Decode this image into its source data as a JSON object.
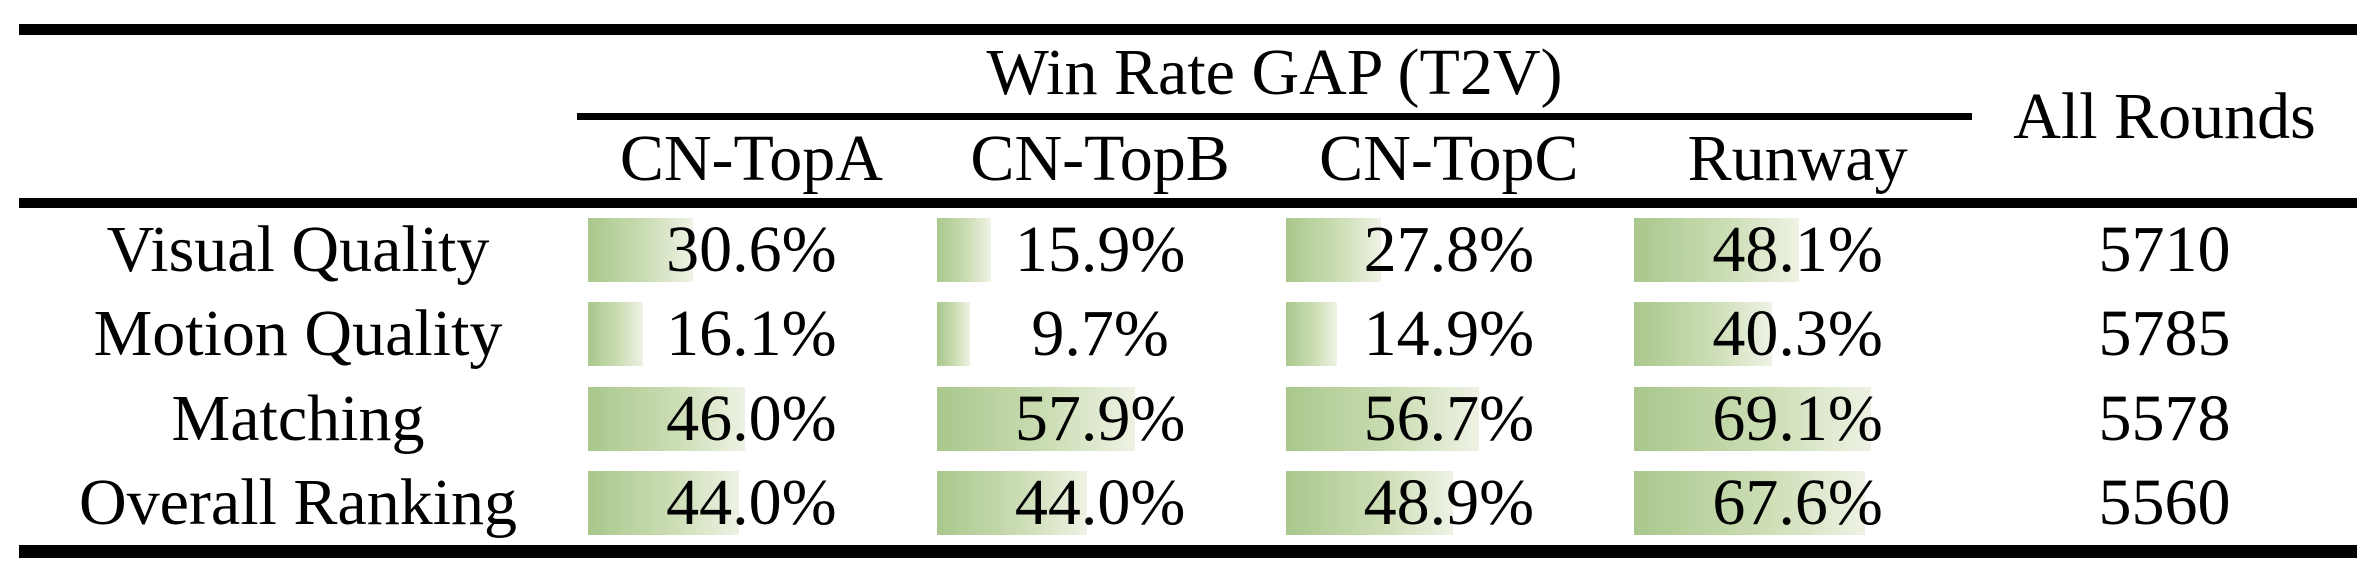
{
  "table": {
    "group_header": "Win Rate GAP (T2V)",
    "all_rounds_header": "All Rounds",
    "columns": [
      "CN-TopA",
      "CN-TopB",
      "CN-TopC",
      "Runway"
    ],
    "rows": [
      {
        "label": "Visual Quality",
        "cells": [
          "30.6%",
          "15.9%",
          "27.8%",
          "48.1%"
        ],
        "all_rounds": "5710"
      },
      {
        "label": "Motion Quality",
        "cells": [
          "16.1%",
          "9.7%",
          "14.9%",
          "40.3%"
        ],
        "all_rounds": "5785"
      },
      {
        "label": "Matching",
        "cells": [
          "46.0%",
          "57.9%",
          "56.7%",
          "69.1%"
        ],
        "all_rounds": "5578"
      },
      {
        "label": "Overall Ranking",
        "cells": [
          "44.0%",
          "44.0%",
          "48.9%",
          "67.6%"
        ],
        "all_rounds": "5560"
      }
    ],
    "colors": {
      "bar_start": "#a9c78c",
      "bar_mid": "#cbddb3",
      "bar_end": "#eef2e4",
      "rule": "#000000",
      "text": "#000000"
    }
  },
  "chart_data": {
    "type": "table",
    "title": "Win Rate GAP (T2V)",
    "columns": [
      "CN-TopA",
      "CN-TopB",
      "CN-TopC",
      "Runway",
      "All Rounds"
    ],
    "row_labels": [
      "Visual Quality",
      "Motion Quality",
      "Matching",
      "Overall Ranking"
    ],
    "win_rate_gap_percent": [
      [
        30.6,
        15.9,
        27.8,
        48.1
      ],
      [
        16.1,
        9.7,
        14.9,
        40.3
      ],
      [
        46.0,
        57.9,
        56.7,
        69.1
      ],
      [
        44.0,
        44.0,
        48.9,
        67.6
      ]
    ],
    "all_rounds": [
      5710,
      5785,
      5578,
      5560
    ],
    "bar_scale": "bar width proportional to percent, 100% = full column width"
  }
}
